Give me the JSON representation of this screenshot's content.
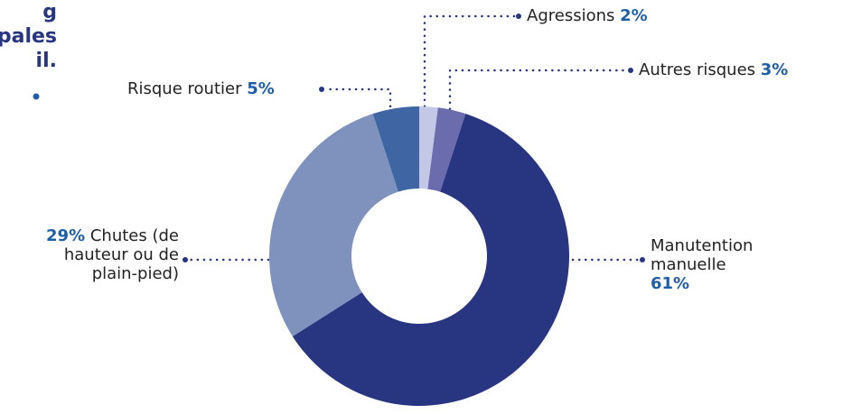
{
  "title_lines": [
    "g",
    "pales",
    "il."
  ],
  "chart_data": {
    "type": "donut",
    "categories": [
      "Agressions",
      "Autres risques",
      "Manutention manuelle",
      "Chutes (de hauteur ou de plain-pied)",
      "Risque routier"
    ],
    "values": [
      2,
      3,
      61,
      29,
      5
    ],
    "value_labels": [
      "2%",
      "3%",
      "61%",
      "29%",
      "5%"
    ],
    "colors": [
      "#c3c8e6",
      "#6b6cad",
      "#283580",
      "#7f92bd",
      "#3f66a3"
    ]
  }
}
